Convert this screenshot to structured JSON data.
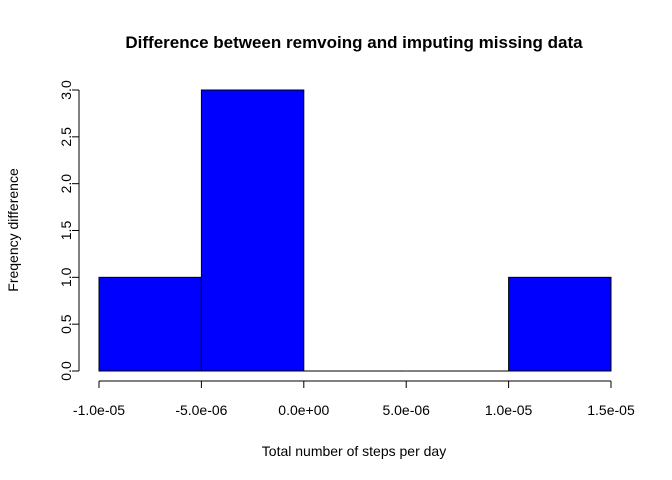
{
  "chart_data": {
    "type": "bar",
    "subtype": "histogram",
    "title": "Difference between remvoing and imputing missing data",
    "xlabel": "Total number of steps per day",
    "ylabel": "Freqency difference",
    "bin_edges": [
      -1e-05,
      -5e-06,
      0,
      5e-06,
      1e-05,
      1.5e-05
    ],
    "values": [
      1,
      3,
      0,
      0,
      1
    ],
    "xlim": [
      -1e-05,
      1.5e-05
    ],
    "ylim": [
      0,
      3
    ],
    "x_ticks": [
      -1e-05,
      -5e-06,
      0,
      5e-06,
      1e-05,
      1.5e-05
    ],
    "x_tick_labels": [
      "-1.0e-05",
      "-5.0e-06",
      "0.0e+00",
      "5.0e-06",
      "1.0e-05",
      "1.5e-05"
    ],
    "y_ticks": [
      0,
      0.5,
      1,
      1.5,
      2,
      2.5,
      3
    ],
    "y_tick_labels": [
      "0.0",
      "0.5",
      "1.0",
      "1.5",
      "2.0",
      "2.5",
      "3.0"
    ],
    "grid": false,
    "bar_color": "#0000ff",
    "bar_edge_color": "#000000"
  }
}
